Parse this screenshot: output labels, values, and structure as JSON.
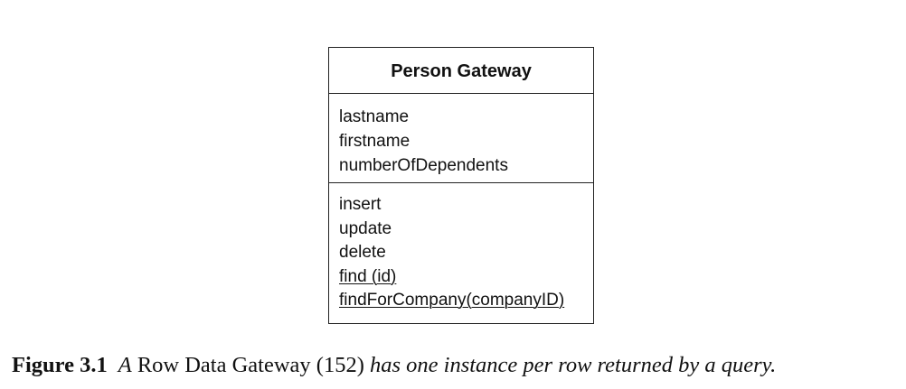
{
  "diagram": {
    "class_name": "Person Gateway",
    "attributes": [
      "lastname",
      "firstname",
      "numberOfDependents"
    ],
    "operations": [
      "insert",
      "update",
      "delete"
    ],
    "static_operations": [
      "find (id)",
      "findForCompany(companyID)"
    ]
  },
  "caption": {
    "label": "Figure 3.1",
    "italic_a": "A",
    "pattern": "Row Data Gateway (152)",
    "italic_rest": "has one instance per row returned by a query."
  }
}
